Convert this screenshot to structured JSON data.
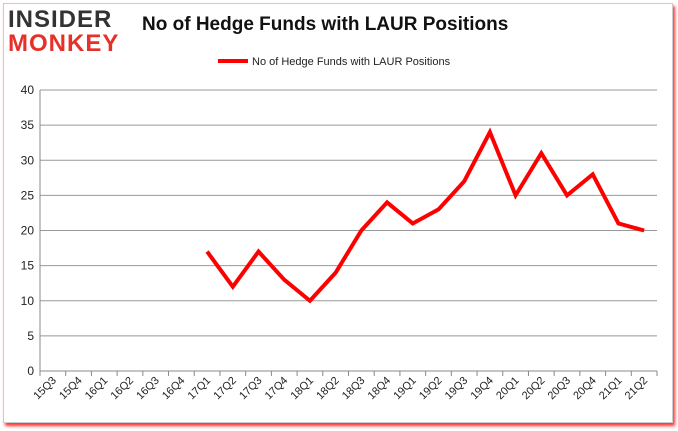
{
  "logo": {
    "line1": "INSIDER",
    "line2": "MONKEY"
  },
  "chart_data": {
    "type": "line",
    "title": "No of Hedge Funds with LAUR Positions",
    "xlabel": "",
    "ylabel": "",
    "ylim": [
      0,
      40
    ],
    "yticks": [
      0,
      5,
      10,
      15,
      20,
      25,
      30,
      35,
      40
    ],
    "grid": true,
    "legend_position": "top-center",
    "categories": [
      "15Q3",
      "15Q4",
      "16Q1",
      "16Q2",
      "16Q3",
      "16Q4",
      "17Q1",
      "17Q2",
      "17Q3",
      "17Q4",
      "18Q1",
      "18Q2",
      "18Q3",
      "18Q4",
      "19Q1",
      "19Q2",
      "19Q3",
      "19Q4",
      "20Q1",
      "20Q2",
      "20Q3",
      "20Q4",
      "21Q1",
      "21Q2"
    ],
    "series": [
      {
        "name": "No of Hedge Funds with LAUR Positions",
        "color": "#ff0000",
        "values": [
          null,
          null,
          null,
          null,
          null,
          null,
          17,
          12,
          17,
          13,
          10,
          14,
          20,
          24,
          21,
          23,
          27,
          34,
          25,
          31,
          25,
          28,
          21,
          20
        ]
      }
    ]
  }
}
